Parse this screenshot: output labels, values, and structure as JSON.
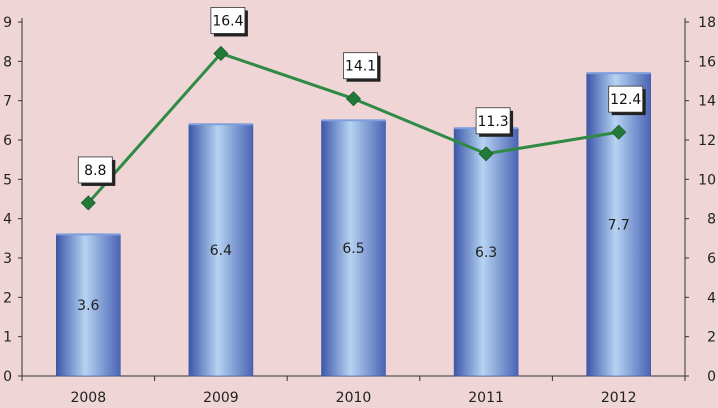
{
  "colors": {
    "background": "#efd5d6",
    "bar_light": "#b6d3f2",
    "bar_mid": "#7f9fdc",
    "bar_dark": "#3d57a8",
    "line": "#2f8a45",
    "marker": "#227a3a",
    "axis": "#333333"
  },
  "chart_data": {
    "type": "bar",
    "categories": [
      "2008",
      "2009",
      "2010",
      "2011",
      "2012"
    ],
    "series": [
      {
        "type": "bar",
        "axis": "left",
        "values": [
          3.6,
          6.4,
          6.5,
          6.3,
          7.7
        ]
      },
      {
        "type": "line",
        "axis": "right",
        "values": [
          8.8,
          16.4,
          14.1,
          11.3,
          12.4
        ]
      }
    ],
    "left_axis": {
      "ylim": [
        0,
        9
      ],
      "ticks": [
        "0",
        "1",
        "2",
        "3",
        "4",
        "5",
        "6",
        "7",
        "8",
        "9"
      ]
    },
    "right_axis": {
      "ylim": [
        0,
        18
      ],
      "ticks": [
        "0",
        "2",
        "4",
        "6",
        "8",
        "10",
        "12",
        "14",
        "16",
        "18"
      ]
    },
    "title": "",
    "xlabel": "",
    "ylabel": "",
    "grid": false,
    "legend": "none"
  }
}
